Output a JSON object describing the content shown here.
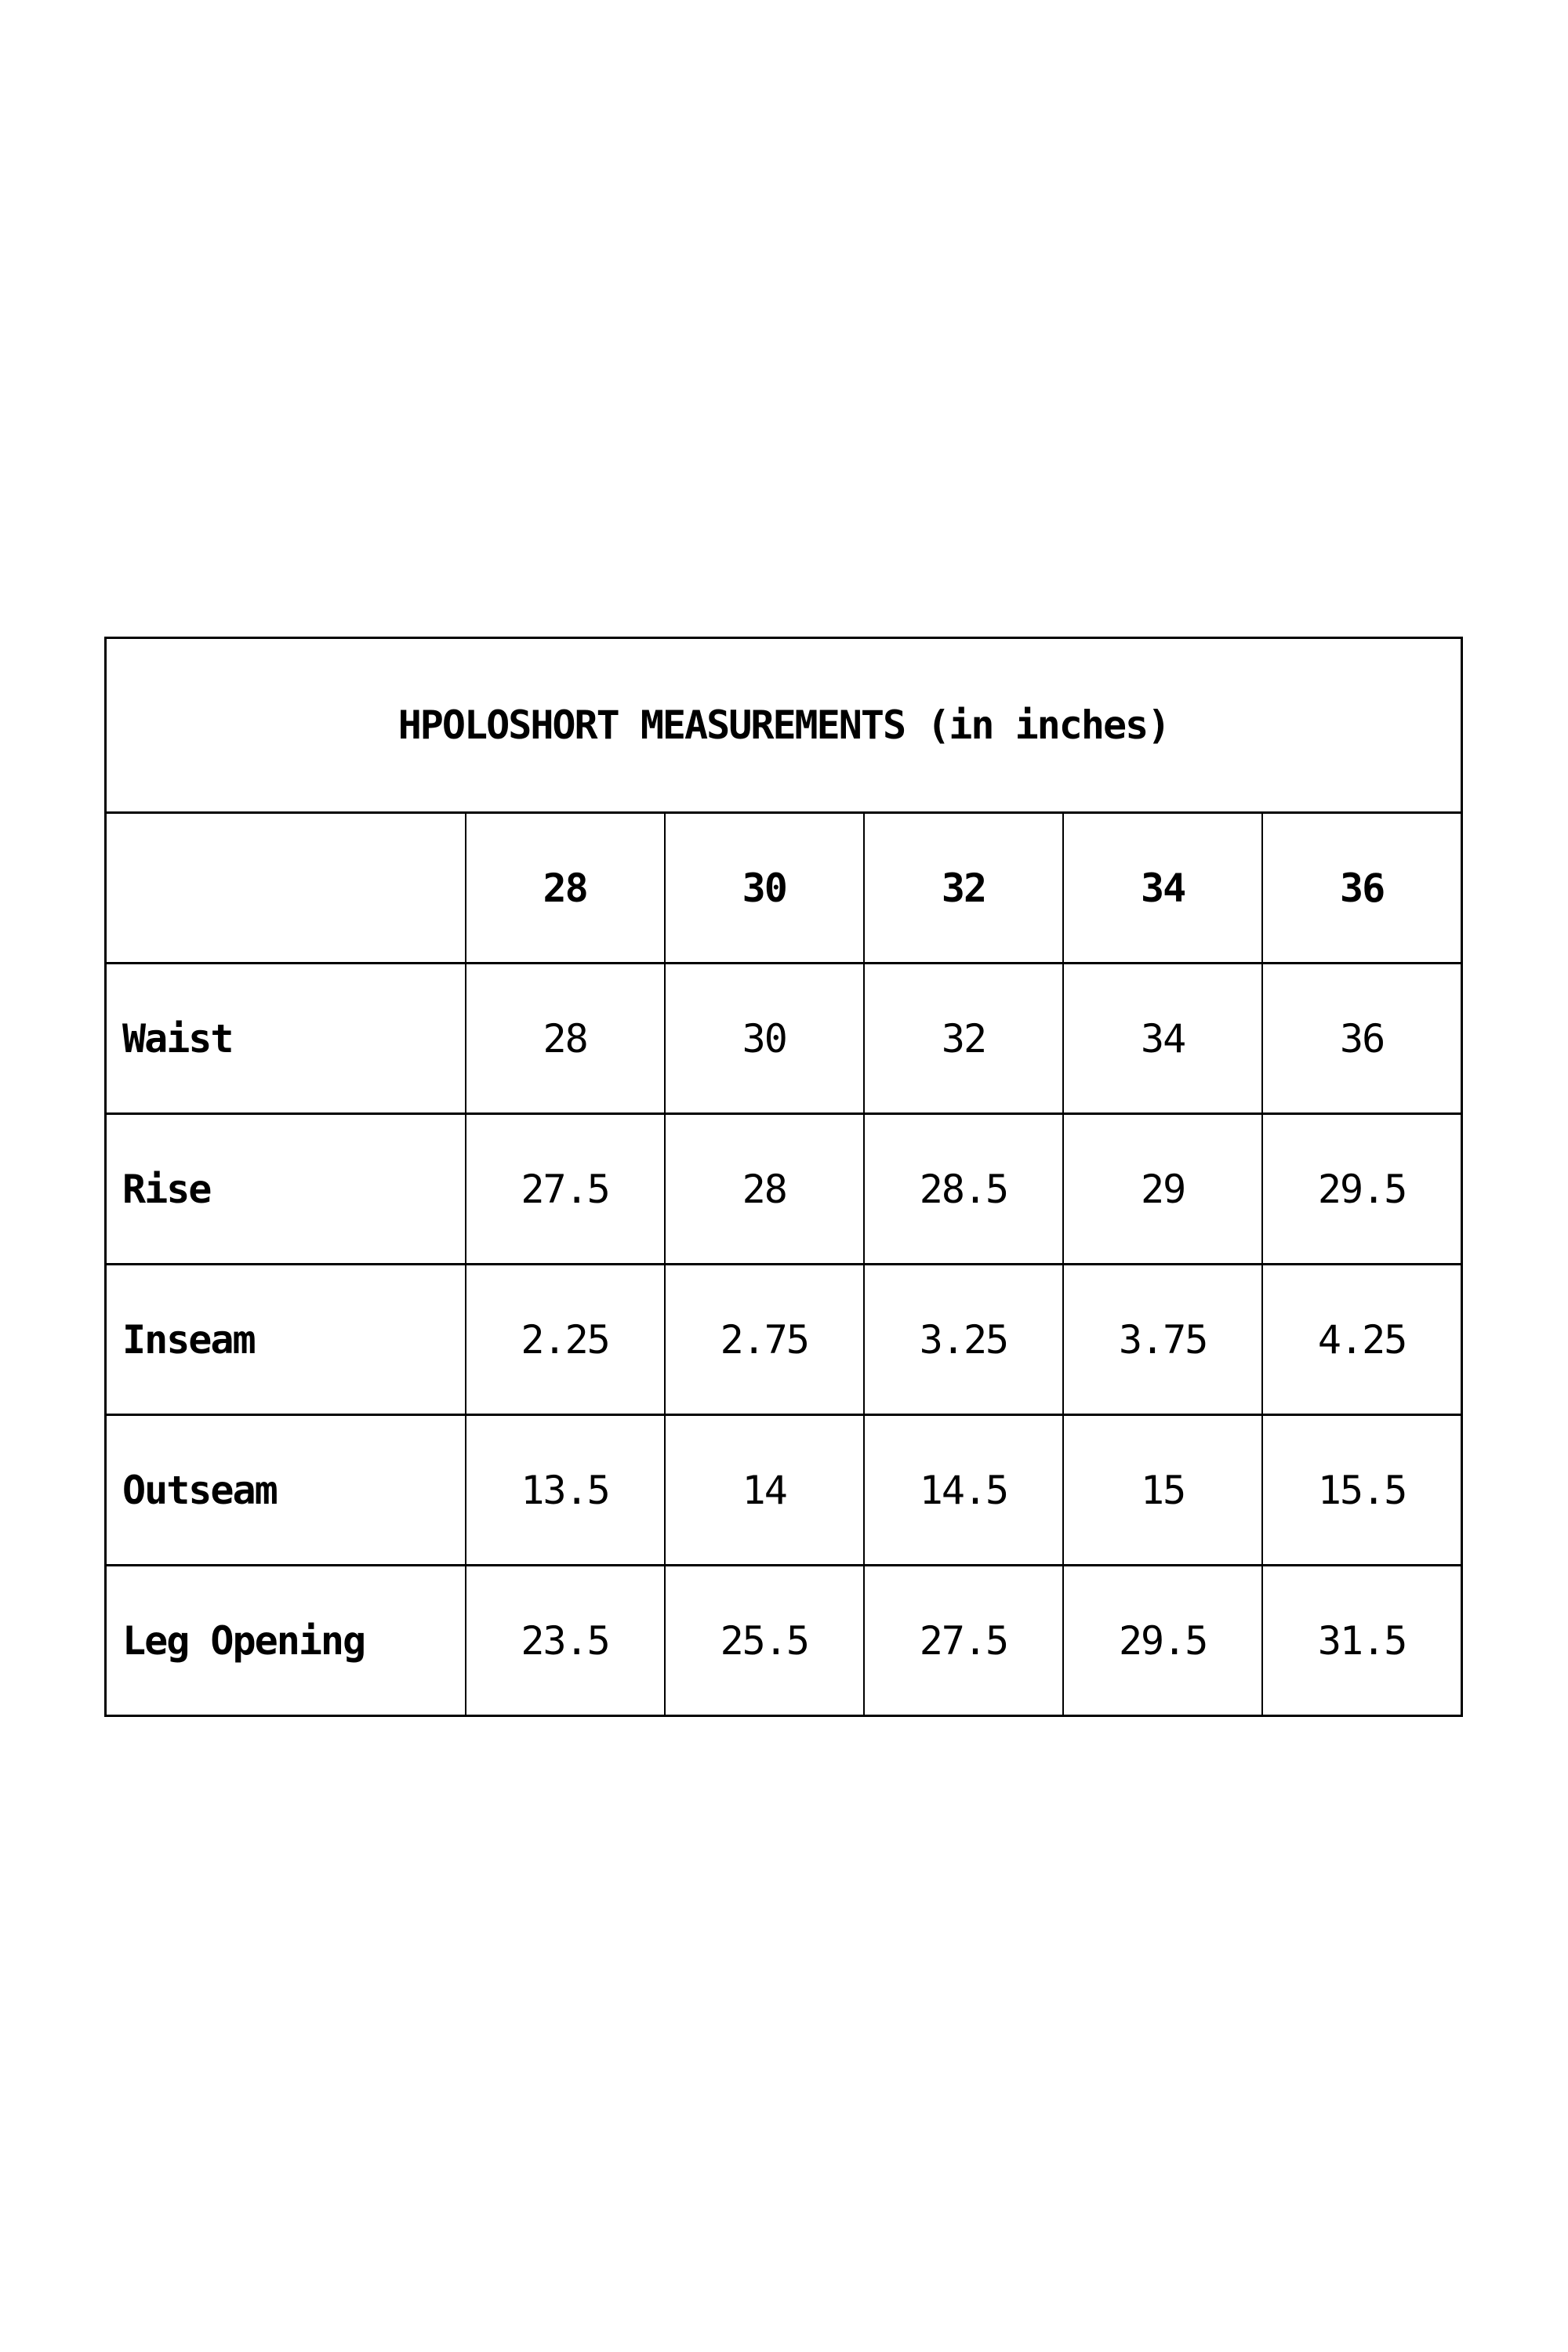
{
  "colors": {
    "border": "#000000",
    "text": "#000000",
    "background": "#ffffff"
  },
  "chart_data": {
    "type": "table",
    "title": "HPOLOSHORT MEASUREMENTS (in inches)",
    "columns": [
      "28",
      "30",
      "32",
      "34",
      "36"
    ],
    "rows": [
      {
        "label": "Waist",
        "values": [
          "28",
          "30",
          "32",
          "34",
          "36"
        ]
      },
      {
        "label": "Rise",
        "values": [
          "27.5",
          "28",
          "28.5",
          "29",
          "29.5"
        ]
      },
      {
        "label": "Inseam",
        "values": [
          "2.25",
          "2.75",
          "3.25",
          "3.75",
          "4.25"
        ]
      },
      {
        "label": "Outseam",
        "values": [
          "13.5",
          "14",
          "14.5",
          "15",
          "15.5"
        ]
      },
      {
        "label": "Leg Opening",
        "values": [
          "23.5",
          "25.5",
          "27.5",
          "29.5",
          "31.5"
        ]
      }
    ]
  }
}
